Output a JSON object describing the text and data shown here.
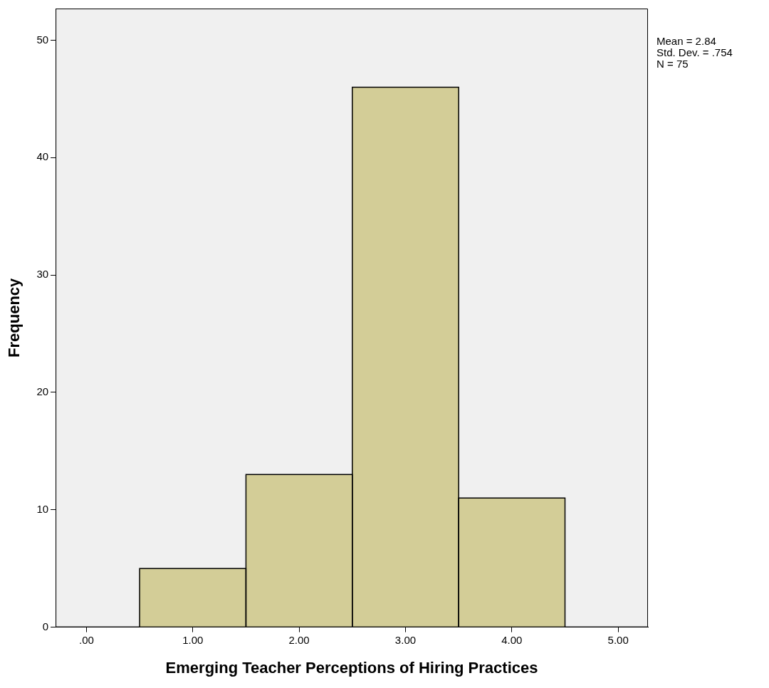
{
  "chart_data": {
    "type": "histogram",
    "xlabel": "Emerging Teacher Perceptions of Hiring Practices",
    "ylabel": "Frequency",
    "bins": [
      0.5,
      1.5,
      2.5,
      3.5,
      4.5
    ],
    "values": [
      5,
      13,
      46,
      11
    ],
    "color": "#d3cd97",
    "xlim": [
      -0.29,
      5.28
    ],
    "xticks": [
      {
        "value": 0,
        "label": ".00"
      },
      {
        "value": 1,
        "label": "1.00"
      },
      {
        "value": 2,
        "label": "2.00"
      },
      {
        "value": 3,
        "label": "3.00"
      },
      {
        "value": 4,
        "label": "4.00"
      },
      {
        "value": 5,
        "label": "5.00"
      }
    ],
    "ylim": [
      0,
      52.7
    ],
    "yticks": [
      0,
      10,
      20,
      30,
      40,
      50
    ],
    "annotations": [
      "Mean = 2.84",
      "Std. Dev. = .754",
      "N = 75"
    ],
    "grid": false,
    "legend": false
  }
}
